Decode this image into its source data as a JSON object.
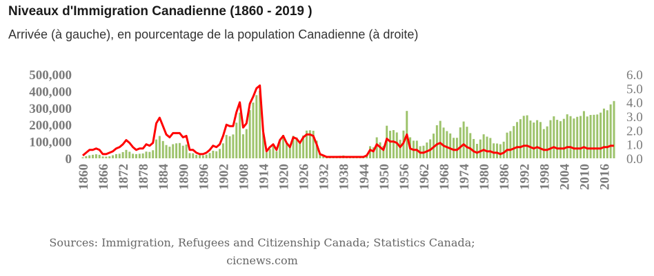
{
  "title": "Niveaux d'Immigration Canadienne (1860 - 2019 )",
  "subtitle": "Arrivée (à gauche), en pourcentage de la population Canadienne (à droite)",
  "source": {
    "line1": "Sources: Immigration, Refugees and Citizenship Canada; Statistics Canada;",
    "line2": "cicnews.com"
  },
  "colors": {
    "bars": "#9dc36b",
    "line": "#ff0000",
    "text": "#7a7a7a"
  },
  "chart_data": {
    "type": "bar",
    "x_start": 1860,
    "x_end": 2019,
    "xtick_labels": [
      "1860",
      "1866",
      "1872",
      "1878",
      "1884",
      "1890",
      "1896",
      "1902",
      "1908",
      "1914",
      "1920",
      "1926",
      "1932",
      "1938",
      "1944",
      "1950",
      "1956",
      "1962",
      "1968",
      "1974",
      "1980",
      "1986",
      "1992",
      "1998",
      "2004",
      "2010",
      "2016"
    ],
    "ylim_left": [
      0,
      500000
    ],
    "yticks_left": [
      "0",
      "100,000",
      "200,000",
      "300,000",
      "400,000",
      "500,000"
    ],
    "ylim_right": [
      0,
      6.0
    ],
    "yticks_right": [
      "0.0",
      "1.0",
      "2.0",
      "3.0",
      "4.0",
      "5.0",
      "6.0"
    ],
    "series": [
      {
        "kind": "bar",
        "axis": "left",
        "values": [
          6000,
          13000,
          18000,
          21000,
          24000,
          21000,
          11000,
          10000,
          12000,
          18000,
          25000,
          27000,
          37000,
          50000,
          39000,
          27000,
          25000,
          27000,
          29000,
          40000,
          38000,
          48000,
          112000,
          133000,
          103000,
          79000,
          69000,
          84000,
          89000,
          91000,
          75000,
          82000,
          31000,
          30000,
          21000,
          19000,
          17000,
          22000,
          32000,
          45000,
          42000,
          56000,
          89000,
          139000,
          131000,
          142000,
          212000,
          272000,
          143000,
          174000,
          287000,
          332000,
          376000,
          401000,
          150000,
          36000,
          56000,
          73000,
          42000,
          107000,
          139000,
          92000,
          64000,
          134000,
          124000,
          97000,
          136000,
          165000,
          167000,
          164000,
          105000,
          28000,
          21000,
          13000,
          12000,
          11000,
          12000,
          15000,
          17000,
          11000,
          9000,
          8000,
          8000,
          8000,
          13000,
          22000,
          72000,
          65000,
          125000,
          95000,
          74000,
          194000,
          164000,
          168000,
          154000,
          110000,
          165000,
          282000,
          125000,
          105000,
          105000,
          72000,
          75000,
          94000,
          113000,
          147000,
          197000,
          223000,
          183000,
          162000,
          148000,
          122000,
          122000,
          184000,
          219000,
          188000,
          150000,
          115000,
          86000,
          112000,
          143000,
          129000,
          121000,
          89000,
          88000,
          84000,
          99000,
          153000,
          162000,
          192000,
          216000,
          233000,
          253000,
          256000,
          225000,
          213000,
          227000,
          216000,
          174000,
          190000,
          227000,
          250000,
          229000,
          221000,
          235000,
          262000,
          251000,
          237000,
          247000,
          252000,
          281000,
          249000,
          258000,
          259000,
          261000,
          272000,
          296000,
          286000,
          321000,
          341000
        ],
        "sampled": true
      },
      {
        "kind": "line",
        "axis": "right",
        "values": [
          0.2,
          0.4,
          0.6,
          0.6,
          0.7,
          0.6,
          0.3,
          0.3,
          0.4,
          0.5,
          0.7,
          0.8,
          1.0,
          1.3,
          1.1,
          0.8,
          0.6,
          0.7,
          0.7,
          1.0,
          0.9,
          1.1,
          2.5,
          2.9,
          2.3,
          1.7,
          1.5,
          1.8,
          1.8,
          1.8,
          1.5,
          1.6,
          0.6,
          0.6,
          0.4,
          0.3,
          0.3,
          0.4,
          0.6,
          0.9,
          0.8,
          1.0,
          1.6,
          2.4,
          2.3,
          2.3,
          3.3,
          4.0,
          2.2,
          2.5,
          3.9,
          4.4,
          5.0,
          5.2,
          1.9,
          0.5,
          0.8,
          1.0,
          0.6,
          1.3,
          1.6,
          1.1,
          0.8,
          1.5,
          1.4,
          1.1,
          1.5,
          1.7,
          1.7,
          1.6,
          1.0,
          0.3,
          0.2,
          0.1,
          0.1,
          0.1,
          0.1,
          0.1,
          0.1,
          0.1,
          0.1,
          0.1,
          0.1,
          0.1,
          0.1,
          0.2,
          0.6,
          0.5,
          1.0,
          0.8,
          0.6,
          1.4,
          1.2,
          1.2,
          1.1,
          0.8,
          1.1,
          1.7,
          0.7,
          0.6,
          0.6,
          0.4,
          0.4,
          0.5,
          0.6,
          0.8,
          1.0,
          1.1,
          0.9,
          0.8,
          0.7,
          0.6,
          0.6,
          0.8,
          1.0,
          0.8,
          0.7,
          0.5,
          0.4,
          0.5,
          0.6,
          0.5,
          0.5,
          0.4,
          0.4,
          0.3,
          0.4,
          0.6,
          0.6,
          0.7,
          0.8,
          0.8,
          0.9,
          0.9,
          0.8,
          0.7,
          0.8,
          0.7,
          0.6,
          0.6,
          0.7,
          0.8,
          0.7,
          0.7,
          0.7,
          0.8,
          0.8,
          0.7,
          0.7,
          0.7,
          0.8,
          0.7,
          0.7,
          0.7,
          0.7,
          0.7,
          0.8,
          0.8,
          0.9,
          0.9
        ],
        "sampled": true
      }
    ]
  }
}
